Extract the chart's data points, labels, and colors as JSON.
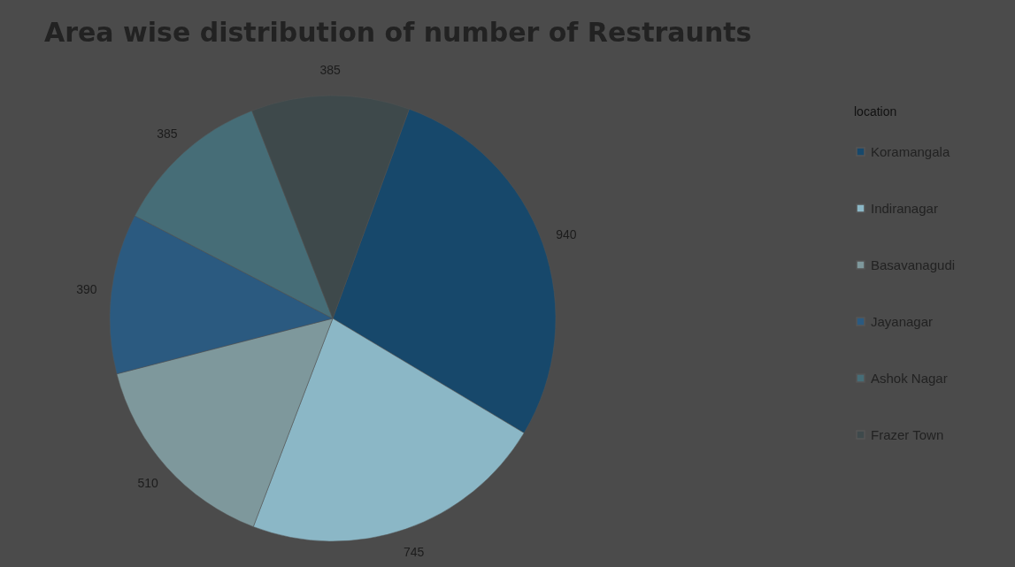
{
  "chart_data": {
    "type": "pie",
    "title": "Area wise distribution of number of  Restraunts",
    "legend_title": "location",
    "categories": [
      "Koramangala",
      "Indiranagar",
      "Basavanagudi",
      "Jayanagar",
      "Ashok Nagar",
      "Frazer Town"
    ],
    "values": [
      940,
      745,
      510,
      390,
      385,
      385
    ],
    "colors": [
      "#17486b",
      "#8bb7c6",
      "#7e989c",
      "#2b5a80",
      "#466d77",
      "#3e494b"
    ],
    "data_labels": true,
    "legend": "right"
  }
}
